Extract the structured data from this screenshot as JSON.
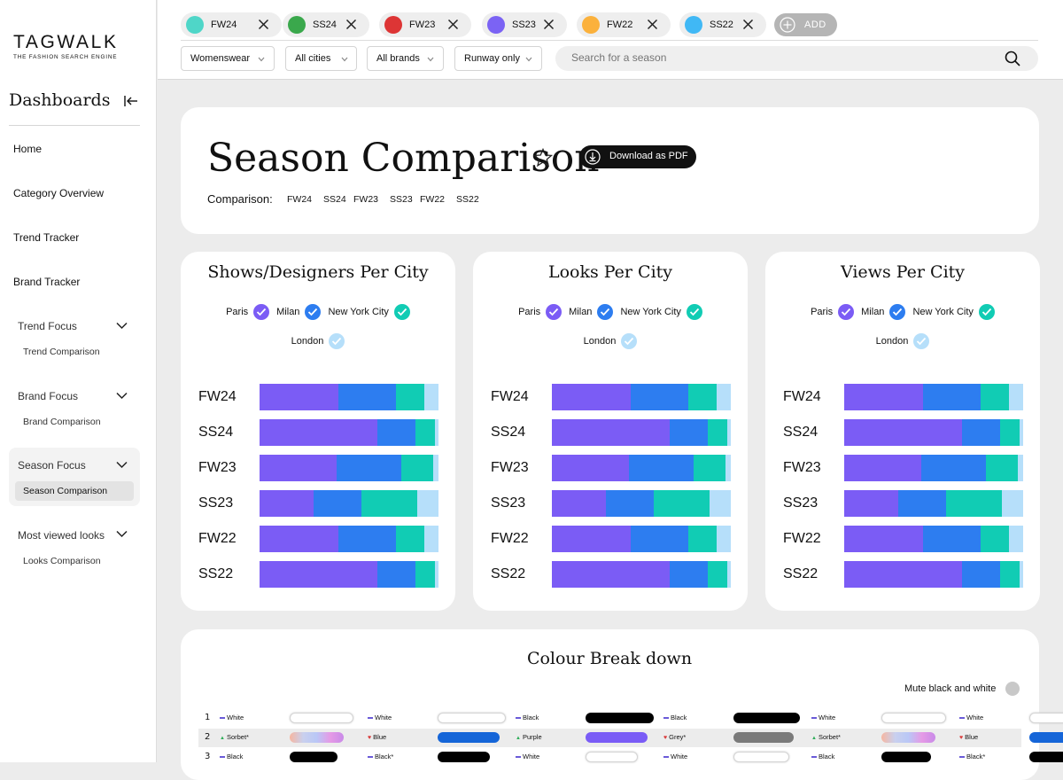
{
  "brand": {
    "name": "TAGWALK",
    "tagline": "THE FASHION SEARCH ENGINE"
  },
  "sidebar": {
    "title": "Dashboards",
    "items": [
      "Home",
      "Category Overview",
      "Trend Tracker",
      "Brand Tracker"
    ],
    "groups": [
      {
        "label": "Trend Focus",
        "sub": "Trend Comparison"
      },
      {
        "label": "Brand Focus",
        "sub": "Brand Comparison"
      },
      {
        "label": "Season Focus",
        "sub": "Season Comparison"
      },
      {
        "label": "Most viewed looks",
        "sub": "Looks Comparison"
      }
    ]
  },
  "seasons": [
    {
      "label": "FW24",
      "color": "#4fd6c8"
    },
    {
      "label": "SS24",
      "color": "#3aa84c"
    },
    {
      "label": "FW23",
      "color": "#dd3535"
    },
    {
      "label": "SS23",
      "color": "#7b63f4"
    },
    {
      "label": "FW22",
      "color": "#fbb13c"
    },
    {
      "label": "SS22",
      "color": "#40b8f5"
    }
  ],
  "add_label": "ADD",
  "filters": [
    "Womenswear",
    "All cities",
    "All brands",
    "Runway only"
  ],
  "search_placeholder": "Search for a season",
  "header": {
    "title": "Season Comparison",
    "pdf_label": "Download as PDF",
    "comparison_label": "Comparison:",
    "comparison_items": [
      "FW24",
      "SS24",
      "FW23",
      "SS23",
      "FW22",
      "SS22"
    ]
  },
  "cities": [
    {
      "name": "Paris",
      "color": "#7b5cf5"
    },
    {
      "name": "Milan",
      "color": "#2d7df0"
    },
    {
      "name": "New York City",
      "color": "#11ccb4"
    },
    {
      "name": "London",
      "color": "#b6dffa"
    }
  ],
  "chart_data": [
    {
      "type": "bar",
      "title": "Shows/Designers Per City",
      "stacked": true,
      "categories": [
        "FW24",
        "SS24",
        "FW23",
        "SS23",
        "FW22",
        "SS22"
      ],
      "series": [
        {
          "name": "Paris",
          "values": [
            44,
            66,
            43,
            30,
            44,
            66
          ]
        },
        {
          "name": "Milan",
          "values": [
            32,
            21,
            36,
            27,
            32,
            21
          ]
        },
        {
          "name": "New York City",
          "values": [
            16,
            11,
            18,
            31,
            16,
            11
          ]
        },
        {
          "name": "London",
          "values": [
            8,
            2,
            3,
            12,
            8,
            2
          ]
        }
      ]
    },
    {
      "type": "bar",
      "title": "Looks Per City",
      "stacked": true,
      "categories": [
        "FW24",
        "SS24",
        "FW23",
        "SS23",
        "FW22",
        "SS22"
      ],
      "series": [
        {
          "name": "Paris",
          "values": [
            44,
            66,
            43,
            30,
            44,
            66
          ]
        },
        {
          "name": "Milan",
          "values": [
            32,
            21,
            36,
            27,
            32,
            21
          ]
        },
        {
          "name": "New York City",
          "values": [
            16,
            11,
            18,
            31,
            16,
            11
          ]
        },
        {
          "name": "London",
          "values": [
            8,
            2,
            3,
            12,
            8,
            2
          ]
        }
      ]
    },
    {
      "type": "bar",
      "title": "Views Per City",
      "stacked": true,
      "categories": [
        "FW24",
        "SS24",
        "FW23",
        "SS23",
        "FW22",
        "SS22"
      ],
      "series": [
        {
          "name": "Paris",
          "values": [
            44,
            66,
            43,
            30,
            44,
            66
          ]
        },
        {
          "name": "Milan",
          "values": [
            32,
            21,
            36,
            27,
            32,
            21
          ]
        },
        {
          "name": "New York City",
          "values": [
            16,
            11,
            18,
            31,
            16,
            11
          ]
        },
        {
          "name": "London",
          "values": [
            8,
            2,
            3,
            12,
            8,
            2
          ]
        }
      ]
    }
  ],
  "colour_breakdown": {
    "title": "Colour Break down",
    "mute_label": "Mute black and white",
    "rows": [
      {
        "rank": "1",
        "cells": [
          {
            "name": "White",
            "trend": "flat",
            "swatch": "#ffffff",
            "fill": 0.85
          },
          {
            "name": "White",
            "trend": "flat",
            "swatch": "#ffffff",
            "fill": 0.9
          },
          {
            "name": "Black",
            "trend": "flat",
            "swatch": "#000000",
            "fill": 0.9
          },
          {
            "name": "Black",
            "trend": "flat",
            "swatch": "#000000",
            "fill": 0.88
          },
          {
            "name": "White",
            "trend": "flat",
            "swatch": "#ffffff",
            "fill": 0.86
          },
          {
            "name": "White",
            "trend": "flat",
            "swatch": "#ffffff",
            "fill": 0.8
          }
        ]
      },
      {
        "rank": "2",
        "cells": [
          {
            "name": "Sorbet*",
            "trend": "up",
            "swatch": "sorbet",
            "fill": 0.72
          },
          {
            "name": "Blue",
            "trend": "down",
            "swatch": "#1565d8",
            "fill": 0.82
          },
          {
            "name": "Purple",
            "trend": "up",
            "swatch": "#7a5cf6",
            "fill": 0.82
          },
          {
            "name": "Grey*",
            "trend": "down",
            "swatch": "#7a7a7a",
            "fill": 0.8
          },
          {
            "name": "Sorbet*",
            "trend": "up",
            "swatch": "sorbet",
            "fill": 0.72
          },
          {
            "name": "Blue",
            "trend": "down",
            "swatch": "#1565d8",
            "fill": 0.8
          }
        ]
      },
      {
        "rank": "3",
        "cells": [
          {
            "name": "Black",
            "trend": "flat",
            "swatch": "#000000",
            "fill": 0.64
          },
          {
            "name": "Black*",
            "trend": "flat",
            "swatch": "#000000",
            "fill": 0.7
          },
          {
            "name": "White",
            "trend": "flat",
            "swatch": "#ffffff",
            "fill": 0.7
          },
          {
            "name": "White",
            "trend": "flat",
            "swatch": "#ffffff",
            "fill": 0.74
          },
          {
            "name": "Black",
            "trend": "flat",
            "swatch": "#000000",
            "fill": 0.66
          },
          {
            "name": "Black*",
            "trend": "flat",
            "swatch": "#000000",
            "fill": 0.7
          }
        ]
      }
    ]
  }
}
